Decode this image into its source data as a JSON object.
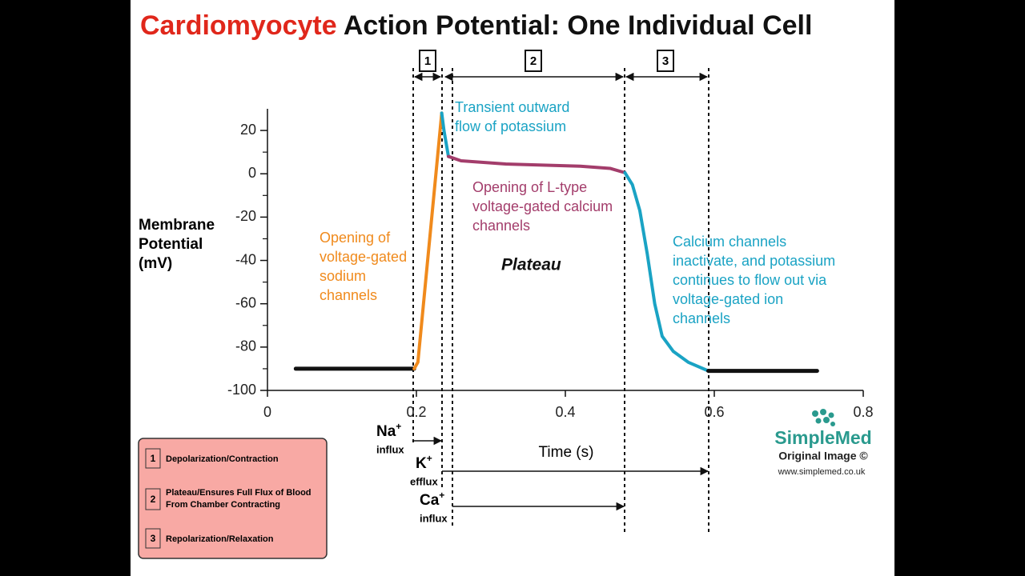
{
  "title_parts": [
    "Cardiomyocyte",
    "Action Potential: One Individual Cell"
  ],
  "chart_data": {
    "type": "line",
    "y_label": [
      "Membrane",
      "Potential",
      "(mV)"
    ],
    "x_label": "Time (s)",
    "xlim": [
      0,
      0.8
    ],
    "ylim": [
      -100,
      30
    ],
    "xticks": [
      0,
      0.2,
      0.4,
      0.6,
      0.8
    ],
    "yticks": [
      -100,
      -80,
      -60,
      -40,
      -20,
      0,
      20
    ],
    "y_minor_ticks": [
      -90,
      -70,
      -50,
      -30,
      -10,
      10
    ],
    "series": [
      {
        "color": "#111111",
        "x": [
          0.038,
          0.197
        ],
        "values": [
          -90,
          -90
        ]
      },
      {
        "color": "#f08a1c",
        "x": [
          0.197,
          0.202,
          0.234
        ],
        "values": [
          -90,
          -87,
          28
        ]
      },
      {
        "color": "#1aa3c4",
        "x": [
          0.234,
          0.237,
          0.243
        ],
        "values": [
          28,
          20,
          8
        ]
      },
      {
        "color": "#a33d6b",
        "x": [
          0.243,
          0.26,
          0.32,
          0.42,
          0.46,
          0.48
        ],
        "values": [
          8,
          6,
          4.5,
          3.5,
          2.5,
          0.5
        ]
      },
      {
        "color": "#1aa3c4",
        "x": [
          0.48,
          0.49,
          0.5,
          0.51,
          0.52,
          0.53,
          0.545,
          0.565,
          0.592
        ],
        "values": [
          0.5,
          -5,
          -17,
          -37,
          -60,
          -75,
          -82,
          -87,
          -91
        ]
      },
      {
        "color": "#111111",
        "x": [
          0.592,
          0.738
        ],
        "values": [
          -91,
          -91
        ]
      }
    ],
    "annotations": [
      {
        "color": "#f08a1c",
        "lines": [
          "Opening of",
          "voltage-gated",
          "sodium",
          "channels"
        ]
      },
      {
        "color": "#1aa3c4",
        "lines": [
          "Transient outward",
          "flow of potassium"
        ]
      },
      {
        "color": "#a33d6b",
        "lines": [
          "Opening of L-type",
          "voltage-gated calcium",
          "channels"
        ]
      },
      {
        "color": "#1aa3c4",
        "lines": [
          "Calcium channels",
          "inactivate, and potassium",
          "continues to flow out via",
          "voltage-gated ion",
          "channels"
        ]
      },
      {
        "color": "#111111",
        "lines": [
          "Plateau"
        ]
      }
    ]
  },
  "phases": [
    "1",
    "2",
    "3"
  ],
  "ion_flows": [
    {
      "ion": "Na",
      "charge": "+",
      "label": "influx"
    },
    {
      "ion": "K",
      "charge": "+",
      "label": "efflux"
    },
    {
      "ion": "Ca",
      "charge": "+",
      "label": "influx"
    }
  ],
  "legend_box": [
    {
      "number": "1",
      "text": [
        "Depolarization/Contraction"
      ]
    },
    {
      "number": "2",
      "text": [
        "Plateau/Ensures Full Flux of Blood",
        "From Chamber Contracting"
      ]
    },
    {
      "number": "3",
      "text": [
        "Repolarization/Relaxation"
      ]
    }
  ],
  "logo": {
    "name": "SimpleMed",
    "subtitle": "Original Image ©",
    "url": "www.simplemed.co.uk"
  }
}
